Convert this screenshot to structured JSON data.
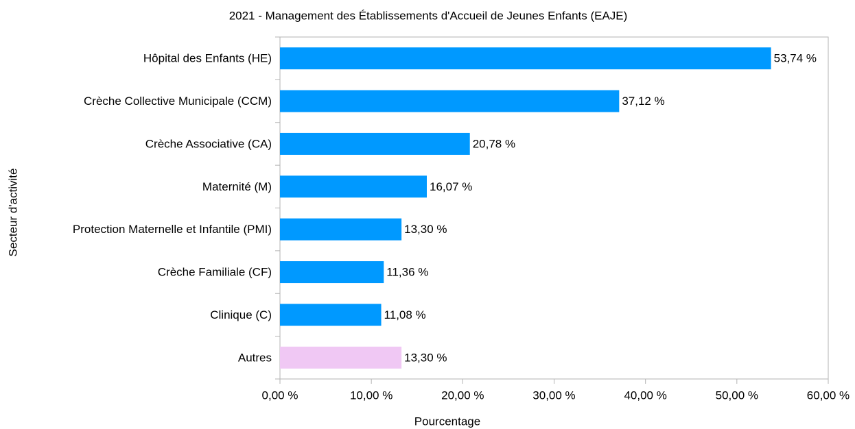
{
  "chart_data": {
    "type": "hbar",
    "title": "2021 - Management des Établissements d'Accueil de Jeunes Enfants (EAJE)",
    "xlabel": "Pourcentage",
    "ylabel": "Secteur d'activité",
    "categories": [
      "Hôpital des Enfants (HE)",
      "Crèche Collective Municipale (CCM)",
      "Crèche Associative (CA)",
      "Maternité (M)",
      "Protection Maternelle et Infantile (PMI)",
      "Crèche Familiale (CF)",
      "Clinique (C)",
      "Autres"
    ],
    "values": [
      53.74,
      37.12,
      20.78,
      16.07,
      13.3,
      11.36,
      11.08,
      13.3
    ],
    "value_labels": [
      "53,74 %",
      "37,12 %",
      "20,78 %",
      "16,07 %",
      "13,30 %",
      "11,36 %",
      "11,08 %",
      "13,30 %"
    ],
    "colors": [
      "#0099ff",
      "#0099ff",
      "#0099ff",
      "#0099ff",
      "#0099ff",
      "#0099ff",
      "#0099ff",
      "#f0c8f4"
    ],
    "xlim": [
      0,
      60
    ],
    "xticks": [
      {
        "value": 0,
        "label": "0,00 %"
      },
      {
        "value": 10,
        "label": "10,00 %"
      },
      {
        "value": 20,
        "label": "20,00 %"
      },
      {
        "value": 30,
        "label": "30,00 %"
      },
      {
        "value": 40,
        "label": "40,00 %"
      },
      {
        "value": 50,
        "label": "50,00 %"
      },
      {
        "value": 60,
        "label": "60,00 %"
      }
    ],
    "grid": false
  }
}
